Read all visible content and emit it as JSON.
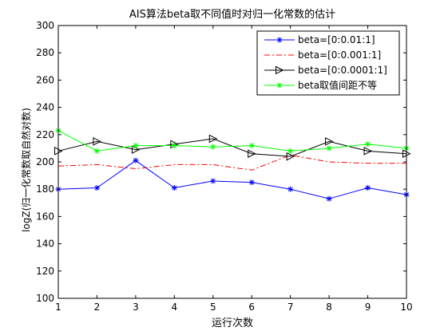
{
  "chart_data": {
    "type": "line",
    "title": "AIS算法beta取不同值时对归一化常数的估计",
    "xlabel": "运行次数",
    "ylabel": "logZ(归一化常数取自然对数)",
    "xlim": [
      1,
      10
    ],
    "ylim": [
      100,
      300
    ],
    "xticks": [
      1,
      2,
      3,
      4,
      5,
      6,
      7,
      8,
      9,
      10
    ],
    "yticks": [
      100,
      120,
      140,
      160,
      180,
      200,
      220,
      240,
      260,
      280,
      300
    ],
    "grid": false,
    "legend_position": "top-right",
    "x": [
      1,
      2,
      3,
      4,
      5,
      6,
      7,
      8,
      9,
      10
    ],
    "series": [
      {
        "name": "beta=[0:0.01:1]",
        "color": "#0000ff",
        "line": "solid",
        "marker": "star",
        "values": [
          180,
          181,
          201,
          181,
          186,
          185,
          180,
          173,
          181,
          176
        ]
      },
      {
        "name": "beta=[0:0.001:1]",
        "color": "#ff0000",
        "line": "dashdot",
        "marker": "none",
        "values": [
          197,
          198,
          195,
          198,
          198,
          194,
          205,
          200,
          199,
          199
        ]
      },
      {
        "name": "beta=[0:0.0001:1]",
        "color": "#000000",
        "line": "solid",
        "marker": "triangle-right",
        "values": [
          208,
          215,
          209,
          213,
          217,
          206,
          204,
          215,
          208,
          206
        ]
      },
      {
        "name": "beta取值间距不等",
        "color": "#00ff00",
        "line": "solid",
        "marker": "star",
        "values": [
          223,
          208,
          212,
          212,
          211,
          212,
          208,
          210,
          213,
          210
        ]
      }
    ]
  }
}
